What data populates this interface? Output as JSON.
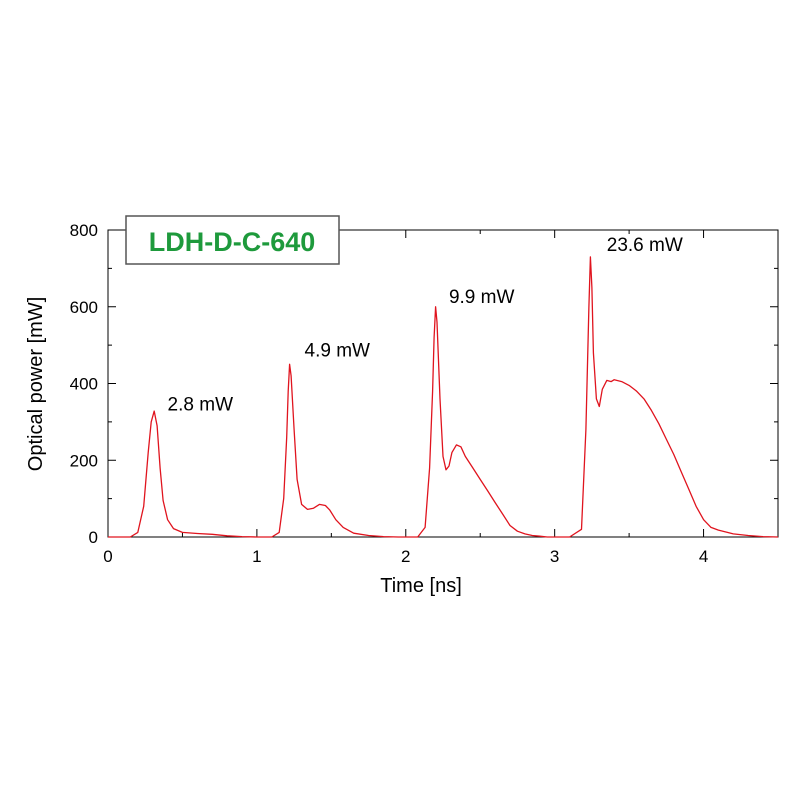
{
  "chart_data": {
    "type": "line",
    "title": "",
    "xlabel": "Time [ns]",
    "ylabel": "Optical power [mW]",
    "xlim": [
      0,
      4.5
    ],
    "ylim": [
      0,
      800
    ],
    "xticks": [
      0,
      1,
      2,
      3,
      4
    ],
    "yticks": [
      0,
      200,
      400,
      600,
      800
    ],
    "grid": false,
    "line_color": "#e0141e",
    "inset_label": {
      "text": "LDH-D-C-640",
      "color": "#1e9a3c",
      "placement": "top-left"
    },
    "annotations": [
      {
        "text": "2.8 mW",
        "x": 0.4,
        "y": 330
      },
      {
        "text": "4.9 mW",
        "x": 1.32,
        "y": 470
      },
      {
        "text": "9.9 mW",
        "x": 2.29,
        "y": 610
      },
      {
        "text": "23.6 mW",
        "x": 3.35,
        "y": 745
      }
    ],
    "series": [
      {
        "x": [
          0.0,
          0.15,
          0.2,
          0.24,
          0.27,
          0.29,
          0.31,
          0.33,
          0.35,
          0.37,
          0.4,
          0.44,
          0.5,
          0.6,
          0.7,
          0.8,
          0.9,
          1.0,
          1.1,
          1.15,
          1.18,
          1.2,
          1.21,
          1.22,
          1.23,
          1.25,
          1.27,
          1.3,
          1.34,
          1.38,
          1.42,
          1.46,
          1.49,
          1.53,
          1.58,
          1.65,
          1.75,
          1.85,
          1.95,
          2.08,
          2.13,
          2.16,
          2.18,
          2.19,
          2.2,
          2.21,
          2.23,
          2.25,
          2.27,
          2.29,
          2.31,
          2.34,
          2.37,
          2.4,
          2.45,
          2.5,
          2.55,
          2.6,
          2.65,
          2.7,
          2.75,
          2.8,
          2.85,
          2.9,
          2.95,
          3.0,
          3.1,
          3.18,
          3.21,
          3.23,
          3.24,
          3.25,
          3.26,
          3.28,
          3.3,
          3.32,
          3.35,
          3.38,
          3.4,
          3.45,
          3.5,
          3.55,
          3.6,
          3.65,
          3.7,
          3.75,
          3.8,
          3.85,
          3.9,
          3.95,
          4.0,
          4.05,
          4.1,
          4.13,
          4.16,
          4.2,
          4.3,
          4.4,
          4.5
        ],
        "y": [
          0,
          0,
          12,
          80,
          220,
          300,
          328,
          290,
          180,
          95,
          45,
          22,
          12,
          9,
          7,
          3,
          1,
          0,
          0,
          12,
          100,
          260,
          380,
          450,
          420,
          280,
          150,
          85,
          72,
          75,
          85,
          82,
          70,
          45,
          25,
          10,
          4,
          1,
          0,
          0,
          25,
          180,
          380,
          520,
          600,
          560,
          360,
          210,
          175,
          185,
          220,
          240,
          235,
          210,
          180,
          150,
          120,
          90,
          60,
          30,
          15,
          8,
          4,
          2,
          0,
          0,
          0,
          20,
          280,
          600,
          730,
          650,
          480,
          360,
          340,
          385,
          408,
          405,
          410,
          405,
          395,
          380,
          360,
          330,
          295,
          255,
          215,
          170,
          125,
          80,
          45,
          25,
          18,
          15,
          12,
          8,
          4,
          1,
          0
        ]
      }
    ]
  }
}
